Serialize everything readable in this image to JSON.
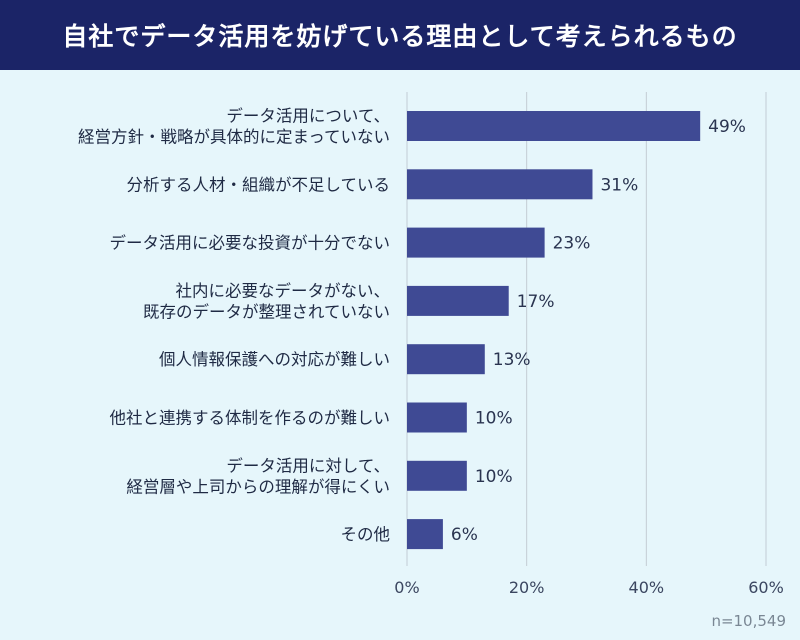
{
  "chart_data": {
    "type": "bar",
    "orientation": "horizontal",
    "title": "自社でデータ活用を妨げている理由として考えられるもの",
    "categories": [
      [
        "データ活用について、",
        "経営方針・戦略が具体的に定まっていない"
      ],
      [
        "分析する人材・組織が不足している"
      ],
      [
        "データ活用に必要な投資が十分でない"
      ],
      [
        "社内に必要なデータがない、",
        "既存のデータが整理されていない"
      ],
      [
        "個人情報保護への対応が難しい"
      ],
      [
        "他社と連携する体制を作るのが難しい"
      ],
      [
        "データ活用に対して、",
        "経営層や上司からの理解が得にくい"
      ],
      [
        "その他"
      ]
    ],
    "values": [
      49,
      31,
      23,
      17,
      13,
      10,
      10,
      6
    ],
    "value_labels": [
      "49%",
      "31%",
      "23%",
      "17%",
      "13%",
      "10%",
      "10%",
      "6%"
    ],
    "xlim": [
      0,
      60
    ],
    "xticks": [
      0,
      20,
      40,
      60
    ],
    "xtick_labels": [
      "0%",
      "20%",
      "40%",
      "60%"
    ],
    "grid": "vertical",
    "bar_color": "#3f4a94",
    "note": "n=10,549"
  }
}
